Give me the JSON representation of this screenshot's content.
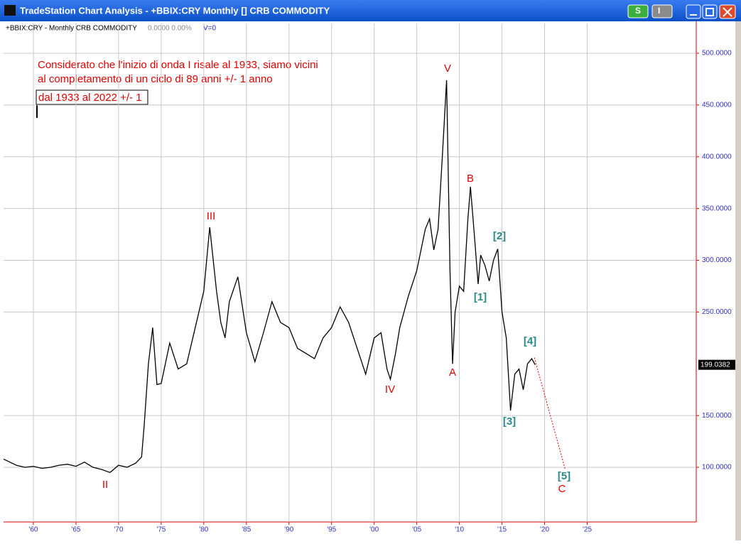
{
  "window_title": "TradeStation Chart Analysis - +BBIX:CRY Monthly [] CRB  COMMODITY",
  "buttons": [
    "S",
    "I"
  ],
  "chart_data": {
    "type": "line",
    "symbol": "+BBIX:CRY - Monthly  CRB  COMMODITY",
    "quote": "0.0000  0.00%",
    "volume": "V=0",
    "annotations": [
      "Considerato che l'inizio di onda I risale al 1933, siamo vicini",
      "al completamento di un ciclo di 89 anni  +/- 1 anno"
    ],
    "boxed_note": "dal 1933 al 2022 +/- 1",
    "wave_labels": [
      "V",
      "III",
      "II",
      "IV",
      "A",
      "B",
      "C",
      "[1]",
      "[2]",
      "[3]",
      "[4]",
      "[5]"
    ],
    "color": "#000000",
    "x": [
      1956.5,
      1957,
      1958,
      1959,
      1960,
      1961,
      1962,
      1963,
      1964,
      1965,
      1966,
      1967,
      1968,
      1969,
      1970,
      1971,
      1972,
      1972.7,
      1973,
      1973.5,
      1974,
      1974.5,
      1975,
      1976,
      1977,
      1978,
      1979,
      1980,
      1980.7,
      1981.5,
      1982,
      1982.5,
      1983,
      1984,
      1985,
      1986,
      1987,
      1988,
      1989,
      1990,
      1991,
      1992,
      1993,
      1994,
      1995,
      1996,
      1997,
      1998,
      1999,
      2000,
      2000.8,
      2001.5,
      2001.9,
      2002.5,
      2003,
      2004,
      2005,
      2006,
      2006.5,
      2007,
      2007.5,
      2008,
      2008.5,
      2008.9,
      2009.2,
      2009.5,
      2010,
      2010.5,
      2011,
      2011.3,
      2011.8,
      2012.2,
      2012.5,
      2013,
      2013.5,
      2014,
      2014.5,
      2015,
      2015.5,
      2016,
      2016.5,
      2017,
      2017.5,
      2018,
      2018.5,
      2018.9
    ],
    "values": [
      108,
      106,
      102,
      100,
      101,
      99,
      100,
      102,
      103,
      101,
      105,
      100,
      98,
      95,
      102,
      100,
      104,
      110,
      140,
      200,
      235,
      180,
      181,
      220,
      195,
      200,
      235,
      270,
      332,
      270,
      240,
      225,
      260,
      284,
      230,
      202,
      230,
      260,
      240,
      235,
      215,
      210,
      205,
      225,
      235,
      255,
      240,
      215,
      190,
      225,
      230,
      195,
      185,
      210,
      235,
      265,
      290,
      330,
      340,
      310,
      330,
      400,
      474,
      290,
      200,
      250,
      275,
      270,
      340,
      371,
      320,
      277,
      305,
      295,
      280,
      300,
      311,
      250,
      225,
      155,
      190,
      195,
      175,
      200,
      205,
      199.0382
    ],
    "projection": {
      "x": [
        2018.8,
        2022.4
      ],
      "values": [
        206,
        98.6
      ],
      "color": "#e00000"
    },
    "xlim": [
      1956.5,
      2037.8
    ],
    "ylim": [
      47.2,
      528.8
    ],
    "xticks": [
      {
        "value": 1960,
        "label": "'60"
      },
      {
        "value": 1965,
        "label": "'65"
      },
      {
        "value": 1970,
        "label": "'70"
      },
      {
        "value": 1975,
        "label": "'75"
      },
      {
        "value": 1980,
        "label": "'80"
      },
      {
        "value": 1985,
        "label": "'85"
      },
      {
        "value": 1990,
        "label": "'90"
      },
      {
        "value": 1995,
        "label": "'95"
      },
      {
        "value": 2000,
        "label": "'00"
      },
      {
        "value": 2005,
        "label": "'05"
      },
      {
        "value": 2010,
        "label": "'10"
      },
      {
        "value": 2015,
        "label": "'15"
      },
      {
        "value": 2020,
        "label": "'20"
      },
      {
        "value": 2025,
        "label": "'25"
      }
    ],
    "yticks": [
      {
        "value": 100,
        "label": "100.0000"
      },
      {
        "value": 150,
        "label": "150.0000"
      },
      {
        "value": 250,
        "label": "250.0000"
      },
      {
        "value": 300,
        "label": "300.0000"
      },
      {
        "value": 350,
        "label": "350.0000"
      },
      {
        "value": 400,
        "label": "400.0000"
      },
      {
        "value": 450,
        "label": "450.0000"
      },
      {
        "value": 500,
        "label": "500.0000"
      }
    ],
    "grid": true
  }
}
